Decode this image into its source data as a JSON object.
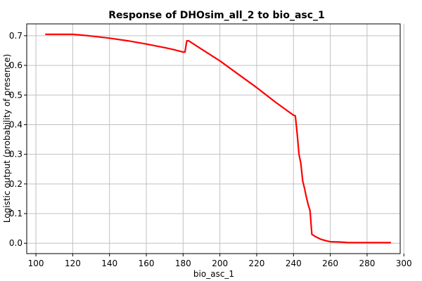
{
  "chart_data": {
    "type": "line",
    "title": "Response of DHOsim_all_2 to bio_asc_1",
    "xlabel": "bio_asc_1",
    "ylabel": "Logistic output (probability of presence)",
    "xlim": [
      95,
      298
    ],
    "ylim": [
      -0.035,
      0.74
    ],
    "x_ticks": [
      100,
      120,
      140,
      160,
      180,
      200,
      220,
      240,
      260,
      280,
      300
    ],
    "y_ticks": [
      0.0,
      0.1,
      0.2,
      0.3,
      0.4,
      0.5,
      0.6,
      0.7
    ],
    "x_tick_labels": [
      "100",
      "120",
      "140",
      "160",
      "180",
      "200",
      "220",
      "240",
      "260",
      "280",
      "300"
    ],
    "y_tick_labels": [
      "0.0",
      "0.1",
      "0.2",
      "0.3",
      "0.4",
      "0.5",
      "0.6",
      "0.7"
    ],
    "grid": true,
    "series": [
      {
        "color": "#ff0000",
        "x": [
          105,
          110,
          115,
          120,
          125,
          130,
          140,
          150,
          160,
          170,
          175,
          180,
          181,
          182,
          183,
          185,
          190,
          200,
          210,
          220,
          230,
          240,
          241,
          242,
          243,
          244,
          245,
          246,
          247,
          248,
          249,
          250,
          252,
          255,
          258,
          260,
          265,
          268,
          270,
          280,
          290,
          293
        ],
        "y": [
          0.705,
          0.705,
          0.705,
          0.705,
          0.702,
          0.699,
          0.692,
          0.683,
          0.672,
          0.66,
          0.653,
          0.645,
          0.645,
          0.683,
          0.683,
          0.675,
          0.655,
          0.615,
          0.57,
          0.525,
          0.477,
          0.432,
          0.43,
          0.37,
          0.3,
          0.27,
          0.21,
          0.185,
          0.155,
          0.13,
          0.11,
          0.03,
          0.022,
          0.013,
          0.008,
          0.005,
          0.004,
          0.003,
          0.002,
          0.002,
          0.002,
          0.002
        ]
      }
    ]
  }
}
